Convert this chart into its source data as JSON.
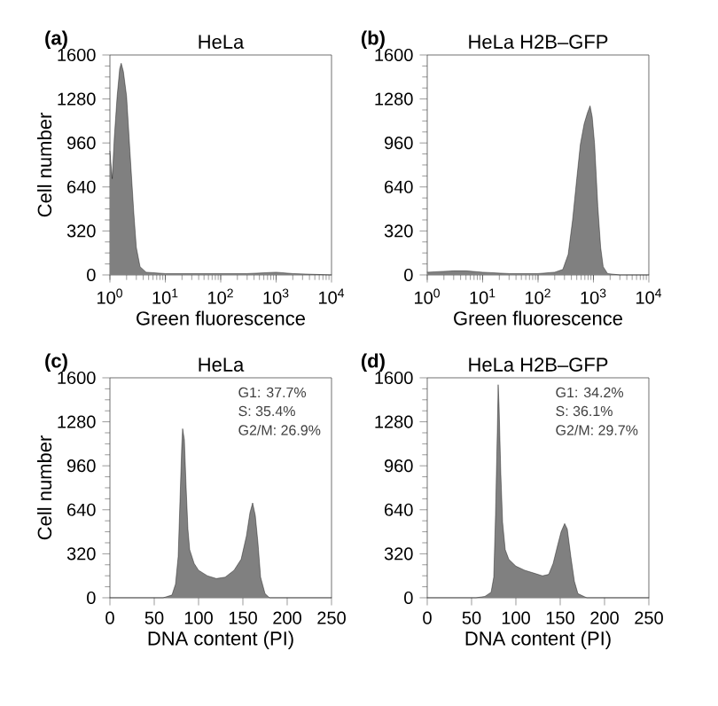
{
  "chart_data": [
    {
      "type": "area",
      "title": "HeLa",
      "xlabel": "Green fluorescence",
      "ylabel": "Cell number",
      "log": "x",
      "annotations": [
        "(a)"
      ],
      "x": [
        1,
        1.1,
        1.2,
        1.35,
        1.5,
        1.6,
        1.75,
        2,
        2.3,
        2.7,
        3,
        3.5,
        4.5,
        10,
        30,
        100,
        300,
        1000,
        2000,
        10000
      ],
      "series": [
        {
          "color": "#808080",
          "values": [
            900,
            700,
            1000,
            1300,
            1500,
            1540,
            1480,
            1300,
            900,
            450,
            200,
            60,
            20,
            10,
            10,
            10,
            10,
            20,
            10,
            0
          ]
        }
      ],
      "xlim": [
        1,
        10000
      ],
      "ylim": [
        0,
        1600
      ],
      "xticks": [
        {
          "value": 1,
          "label": "10$^{0}$"
        },
        {
          "value": 10,
          "label": "10$^{1}$"
        },
        {
          "value": 100,
          "label": "10$^{2}$"
        },
        {
          "value": 1000,
          "label": "10$^{3}$"
        },
        {
          "value": 10000,
          "label": "10$^{4}$"
        }
      ],
      "yticks": [
        0,
        320,
        640,
        960,
        1280,
        1600
      ]
    },
    {
      "type": "area",
      "title": "HeLa  H2B–GFP",
      "xlabel": "Green fluorescence",
      "log": "x",
      "annotations": [
        "(b)"
      ],
      "x": [
        1,
        3,
        5,
        10,
        30,
        100,
        200,
        280,
        350,
        420,
        500,
        580,
        680,
        780,
        870,
        950,
        1050,
        1200,
        1350,
        1500,
        1800,
        3000,
        10000
      ],
      "series": [
        {
          "color": "#808080",
          "values": [
            20,
            30,
            30,
            20,
            10,
            10,
            20,
            40,
            150,
            400,
            700,
            950,
            1100,
            1180,
            1230,
            1150,
            950,
            500,
            200,
            60,
            10,
            0,
            0
          ]
        }
      ],
      "xlim": [
        1,
        10000
      ],
      "ylim": [
        0,
        1600
      ],
      "xticks": [
        {
          "value": 1,
          "label": "10$^{0}$"
        },
        {
          "value": 10,
          "label": "10$^{1}$"
        },
        {
          "value": 100,
          "label": "10$^{2}$"
        },
        {
          "value": 1000,
          "label": "10$^{3}$"
        },
        {
          "value": 10000,
          "label": "10$^{4}$"
        }
      ],
      "yticks": [
        0,
        320,
        640,
        960,
        1280,
        1600
      ]
    },
    {
      "type": "area",
      "title": "HeLa",
      "xlabel": "DNA content (PI)",
      "ylabel": "Cell number",
      "annotations": [
        "(c)",
        "G1:      37.7%",
        "S:         35.4%",
        "G2/M: 26.9%"
      ],
      "x": [
        0,
        60,
        70,
        74,
        77,
        79,
        81,
        82,
        84,
        86,
        88,
        90,
        95,
        100,
        110,
        120,
        130,
        140,
        148,
        154,
        158,
        161,
        164,
        167,
        170,
        175,
        180,
        250
      ],
      "series": [
        {
          "color": "#808080",
          "values": [
            0,
            0,
            20,
            100,
            300,
            700,
            1100,
            1230,
            1150,
            800,
            500,
            350,
            250,
            200,
            160,
            140,
            150,
            200,
            280,
            450,
            620,
            690,
            600,
            400,
            150,
            30,
            0,
            0
          ]
        }
      ],
      "xlim": [
        0,
        250
      ],
      "ylim": [
        0,
        1600
      ],
      "xticks": [
        0,
        50,
        100,
        150,
        200,
        250
      ],
      "yticks": [
        0,
        320,
        640,
        960,
        1280,
        1600
      ]
    },
    {
      "type": "area",
      "title": "HeLa  H2B–GFP",
      "xlabel": "DNA content (PI)",
      "annotations": [
        "(d)",
        "G1:      34.2%",
        "S:         36.1%",
        "G2/M: 29.7%"
      ],
      "x": [
        0,
        55,
        65,
        72,
        75,
        77,
        79,
        80,
        81,
        83,
        85,
        88,
        92,
        100,
        110,
        120,
        130,
        137,
        142,
        147,
        151,
        155,
        158,
        162,
        166,
        170,
        180,
        250
      ],
      "series": [
        {
          "color": "#808080",
          "values": [
            0,
            0,
            10,
            40,
            150,
            600,
            1200,
            1550,
            1400,
            900,
            550,
            350,
            280,
            230,
            200,
            180,
            160,
            170,
            250,
            380,
            480,
            540,
            500,
            300,
            120,
            30,
            0,
            0
          ]
        }
      ],
      "xlim": [
        0,
        250
      ],
      "ylim": [
        0,
        1600
      ],
      "xticks": [
        0,
        50,
        100,
        150,
        200,
        250
      ],
      "yticks": [
        0,
        320,
        640,
        960,
        1280,
        1600
      ]
    }
  ]
}
